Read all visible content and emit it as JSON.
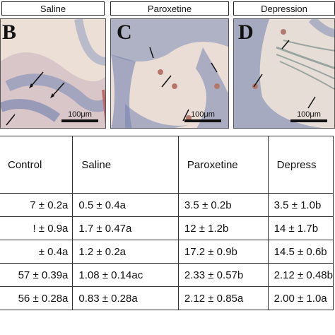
{
  "panels": [
    {
      "label": "Saline",
      "letter": "B",
      "scale": "100μm"
    },
    {
      "label": "Paroxetine",
      "letter": "C",
      "scale": "100μm"
    },
    {
      "label": "Depression",
      "letter": "D",
      "scale": "100μm"
    }
  ],
  "table": {
    "headers": [
      "Control",
      "Saline",
      "Paroxetine",
      "Depress"
    ],
    "rows": [
      [
        "7 ± 0.2a",
        "0.5 ± 0.4a",
        "3.5 ± 0.2b",
        "3.5 ± 1.0b"
      ],
      [
        "! ± 0.9a",
        "1.7 ± 0.47a",
        "12 ± 1.2b",
        "14 ± 1.7b"
      ],
      [
        "± 0.4a",
        "1.2 ± 0.2a",
        "17.2 ± 0.9b",
        "14.5 ± 0.6b"
      ],
      [
        "57 ± 0.39a",
        "1.08 ± 0.14ac",
        "2.33 ± 0.57b",
        "2.12 ± 0.48b"
      ],
      [
        "56 ± 0.28a",
        "0.83 ± 0.28a",
        "2.12 ± 0.85a",
        "2.00 ± 1.0a"
      ]
    ]
  },
  "colors": {
    "tissue_bg": "#e9ddd4",
    "nuclei": "#3d4f86",
    "stain": "#b9786a"
  }
}
